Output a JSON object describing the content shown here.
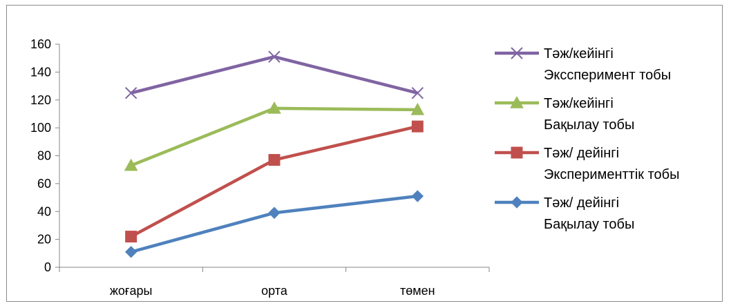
{
  "chart_data": {
    "type": "line",
    "title": "",
    "xlabel": "",
    "ylabel": "",
    "categories": [
      "жоғары",
      "орта",
      "төмен"
    ],
    "ylim": [
      0,
      160
    ],
    "yticks": [
      0,
      20,
      40,
      60,
      80,
      100,
      120,
      140,
      160
    ],
    "grid": false,
    "legend_position": "right",
    "series": [
      {
        "name_lines": [
          "Тәж/кейінгі",
          "Экссперимент тобы"
        ],
        "values": [
          125,
          151,
          125
        ],
        "color": "#8064a2",
        "marker": "x"
      },
      {
        "name_lines": [
          "Тәж/кейінгі",
          "Бақылау тобы"
        ],
        "values": [
          73,
          114,
          113
        ],
        "color": "#9bbb59",
        "marker": "triangle"
      },
      {
        "name_lines": [
          "Тәж/ дейінгі",
          "Эксперименттік тобы"
        ],
        "values": [
          22,
          77,
          101
        ],
        "color": "#c0504d",
        "marker": "square"
      },
      {
        "name_lines": [
          "Тәж/ дейінгі",
          "Бақылау тобы"
        ],
        "values": [
          11,
          39,
          51
        ],
        "color": "#4f81bd",
        "marker": "diamond"
      }
    ]
  }
}
